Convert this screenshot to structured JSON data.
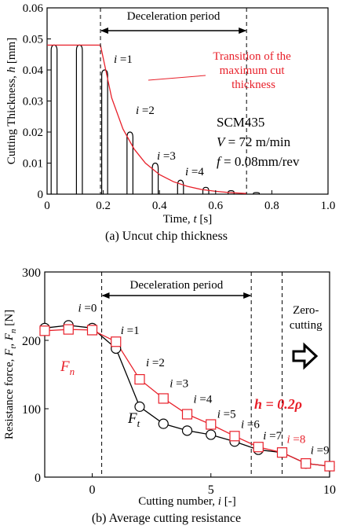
{
  "chart_data": [
    {
      "type": "line",
      "caption": "(a) Uncut chip thickness",
      "xlabel_prefix": "Time, ",
      "xlabel_var": "t",
      "xlabel_unit": " [s]",
      "ylabel_prefix": "Cutting Thickness, ",
      "ylabel_var": "h",
      "ylabel_unit": " [mm]",
      "xlim": [
        0,
        1.0
      ],
      "ylim": [
        0,
        0.06
      ],
      "xticks": [
        "0",
        "0.2",
        "0.4",
        "0.6",
        "0.8",
        "1.0"
      ],
      "yticks": [
        "0",
        "0.01",
        "0.02",
        "0.03",
        "0.04",
        "0.05",
        "0.06"
      ],
      "xtick_values": [
        0,
        0.2,
        0.4,
        0.6,
        0.8,
        1.0
      ],
      "ytick_values": [
        0,
        0.01,
        0.02,
        0.03,
        0.04,
        0.05,
        0.06
      ],
      "deceleration_label": "Deceleration period",
      "deceleration_range": [
        0.19,
        0.71
      ],
      "max_thickness_label": [
        "Transition of the",
        "maximum cut",
        "thickness"
      ],
      "condition_lines": [
        "SCM435",
        "V = 72 m/min",
        "f = 0.08mm/rev"
      ],
      "pulse_labels": [
        "i =1",
        "i =2",
        "i =3",
        "i =4"
      ],
      "pulses": [
        {
          "center": 0.025,
          "height": 0.048,
          "label": null
        },
        {
          "center": 0.115,
          "height": 0.048,
          "label": null
        },
        {
          "center": 0.205,
          "height": 0.04,
          "label": "i =1"
        },
        {
          "center": 0.295,
          "height": 0.02,
          "label": "i =2"
        },
        {
          "center": 0.385,
          "height": 0.01,
          "label": "i =3"
        },
        {
          "center": 0.475,
          "height": 0.0045,
          "label": "i =4"
        },
        {
          "center": 0.565,
          "height": 0.0022,
          "label": null
        },
        {
          "center": 0.655,
          "height": 0.0011,
          "label": null
        },
        {
          "center": 0.745,
          "height": 0.0005,
          "label": null
        }
      ],
      "max_curve": {
        "flat_value": 0.048,
        "decay_start": 0.19,
        "decay_end": 0.71,
        "x": [
          0.0,
          0.19,
          0.23,
          0.27,
          0.31,
          0.35,
          0.4,
          0.45,
          0.5,
          0.55,
          0.6,
          0.65,
          0.71
        ],
        "y": [
          0.048,
          0.048,
          0.031,
          0.021,
          0.0145,
          0.01,
          0.0063,
          0.004,
          0.0025,
          0.0015,
          0.0009,
          0.0005,
          0.0002
        ]
      },
      "colors": {
        "curve": "#e8202a",
        "line": "#000000"
      }
    },
    {
      "type": "line",
      "caption": "(b) Average cutting resistance",
      "xlabel_prefix": "Cutting number, ",
      "xlabel_var": "i",
      "xlabel_unit": " [-]",
      "ylabel_prefix": "Resistance force, ",
      "ylabel_var1": "F",
      "ylabel_sub1": "t",
      "ylabel_var2": "F",
      "ylabel_sub2": "n",
      "ylabel_unit": " [N]",
      "xlim": [
        -2,
        10
      ],
      "ylim": [
        0,
        300
      ],
      "xticks": [
        "0",
        "5",
        "10"
      ],
      "yticks": [
        "0",
        "100",
        "200",
        "300"
      ],
      "xtick_values": [
        0,
        5,
        10
      ],
      "ytick_values": [
        0,
        100,
        200,
        300
      ],
      "deceleration_label": "Deceleration period",
      "deceleration_range": [
        0.4,
        6.7
      ],
      "zero_cutting_x": 8.0,
      "zero_cutting_label": [
        "Zero-",
        "cutting"
      ],
      "h_label": "h  = 0.2ρ",
      "i_labels": [
        {
          "text": "i =0",
          "x": 0,
          "y": 235,
          "color": "#000000"
        },
        {
          "text": "i =1",
          "x": 1,
          "y": 200,
          "color": "#000000"
        },
        {
          "text": "i =2",
          "x": 2,
          "y": 155,
          "color": "#000000"
        },
        {
          "text": "i =3",
          "x": 3,
          "y": 125,
          "color": "#000000"
        },
        {
          "text": "i =4",
          "x": 4,
          "y": 102,
          "color": "#000000"
        },
        {
          "text": "i =5",
          "x": 5,
          "y": 80,
          "color": "#000000"
        },
        {
          "text": "i =6",
          "x": 6,
          "y": 65,
          "color": "#000000"
        },
        {
          "text": "i =7",
          "x": 7,
          "y": 48,
          "color": "#000000"
        },
        {
          "text": "i =8",
          "x": 8,
          "y": 43,
          "color": "#e8202a"
        },
        {
          "text": "i =9",
          "x": 9,
          "y": 27,
          "color": "#000000"
        }
      ],
      "series": [
        {
          "name": "Ft",
          "label_var": "F",
          "label_sub": "t",
          "marker": "circle",
          "color": "#000000",
          "x": [
            -2,
            -1,
            0,
            1,
            2,
            3,
            4,
            5,
            6,
            7,
            8,
            9,
            10
          ],
          "y": [
            218,
            222,
            218,
            188,
            103,
            78,
            68,
            62,
            52,
            40,
            36,
            20,
            16
          ]
        },
        {
          "name": "Fn",
          "label_var": "F",
          "label_sub": "n",
          "marker": "square",
          "color": "#e8202a",
          "x": [
            -2,
            -1,
            0,
            1,
            2,
            3,
            4,
            5,
            6,
            7,
            8,
            9,
            10
          ],
          "y": [
            214,
            216,
            215,
            198,
            143,
            115,
            92,
            77,
            60,
            44,
            36,
            20,
            16
          ]
        }
      ]
    }
  ]
}
